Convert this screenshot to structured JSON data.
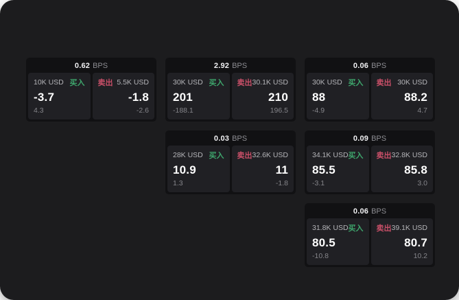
{
  "labels": {
    "bps_unit": "BPS",
    "buy": "买入",
    "sell": "卖出"
  },
  "colors": {
    "surface_bg": "#1c1c1e",
    "card_bg": "#111113",
    "panel_bg": "#202024",
    "header_value": "#f0f0f2",
    "header_unit": "#8c8c91",
    "amount_color": "#b4b4b8",
    "buy_green": "#3ea56c",
    "sell_red": "#c94f68",
    "price_color": "#ffffff",
    "delta_color": "#85858a"
  },
  "cards": [
    {
      "row": 1,
      "col": 1,
      "bps": "0.62",
      "buy": {
        "amount": "10K USD",
        "price": "-3.7",
        "delta": "4.3"
      },
      "sell": {
        "amount": "5.5K USD",
        "price": "-1.8",
        "delta": "-2.6"
      }
    },
    {
      "row": 1,
      "col": 2,
      "bps": "2.92",
      "buy": {
        "amount": "30K USD",
        "price": "201",
        "delta": "-188.1"
      },
      "sell": {
        "amount": "30.1K USD",
        "price": "210",
        "delta": "196.5"
      }
    },
    {
      "row": 1,
      "col": 3,
      "bps": "0.06",
      "buy": {
        "amount": "30K USD",
        "price": "88",
        "delta": "-4.9"
      },
      "sell": {
        "amount": "30K USD",
        "price": "88.2",
        "delta": "4.7"
      }
    },
    {
      "row": 2,
      "col": 2,
      "bps": "0.03",
      "buy": {
        "amount": "28K USD",
        "price": "10.9",
        "delta": "1.3"
      },
      "sell": {
        "amount": "32.6K USD",
        "price": "11",
        "delta": "-1.8"
      }
    },
    {
      "row": 2,
      "col": 3,
      "bps": "0.09",
      "buy": {
        "amount": "34.1K USD",
        "price": "85.5",
        "delta": "-3.1"
      },
      "sell": {
        "amount": "32.8K USD",
        "price": "85.8",
        "delta": "3.0"
      }
    },
    {
      "row": 3,
      "col": 3,
      "bps": "0.06",
      "buy": {
        "amount": "31.8K USD",
        "price": "80.5",
        "delta": "-10.8"
      },
      "sell": {
        "amount": "39.1K USD",
        "price": "80.7",
        "delta": "10.2"
      }
    }
  ]
}
